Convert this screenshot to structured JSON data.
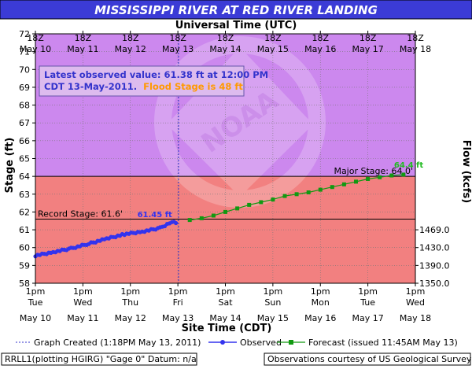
{
  "page": {
    "title": "MISSISSIPPI RIVER AT RED RIVER LANDING",
    "top_axis_title": "Universal Time (UTC)",
    "bottom_axis_title": "Site Time (CDT)",
    "left_axis_title": "Stage (ft)",
    "right_axis_title": "Flow (kcfs)",
    "station_text": "RRLL1(plotting HGIRG) \"Gage 0\" Datum: n/a",
    "credit_text": "Observations courtesy of US Geological Survey",
    "info_line1": "Latest observed value: 61.38 ft at 12:00 PM",
    "info_line2a": "CDT 13-May-2011.",
    "info_line2b": "Flood Stage is 48 ft",
    "legend": {
      "created": "Graph Created (1:18PM May 13, 2011)",
      "observed": "Observed",
      "forecast": "Forecast (issued 11:45AM May 13)"
    },
    "watermark": "NOAA"
  },
  "colors": {
    "title_bar": "#3b3bd6",
    "zone_high": "#cc88ee",
    "zone_low": "#f28080",
    "observed": "#3333ee",
    "forecast": "#119911",
    "info_text": "#3333cc",
    "flood_text": "#ff9900",
    "peak_label": "#22bb22",
    "obs_label": "#3333ee"
  },
  "chart_data": {
    "type": "line",
    "ylim": [
      58,
      72
    ],
    "y_ticks": [
      "58",
      "59",
      "60",
      "61",
      "62",
      "63",
      "64",
      "65",
      "66",
      "67",
      "68",
      "69",
      "70",
      "71",
      "72"
    ],
    "xlim": [
      "2011-05-10T13:00",
      "2011-05-18T13:00"
    ],
    "top_ticks": [
      {
        "hour": "18Z",
        "date": "May 10"
      },
      {
        "hour": "18Z",
        "date": "May 11"
      },
      {
        "hour": "18Z",
        "date": "May 12"
      },
      {
        "hour": "18Z",
        "date": "May 13"
      },
      {
        "hour": "18Z",
        "date": "May 14"
      },
      {
        "hour": "18Z",
        "date": "May 15"
      },
      {
        "hour": "18Z",
        "date": "May 16"
      },
      {
        "hour": "18Z",
        "date": "May 17"
      },
      {
        "hour": "18Z",
        "date": "May 18"
      }
    ],
    "bottom_ticks": [
      {
        "time": "1pm",
        "day": "Tue",
        "date": "May 10"
      },
      {
        "time": "1pm",
        "day": "Wed",
        "date": "May 11"
      },
      {
        "time": "1pm",
        "day": "Thu",
        "date": "May 12"
      },
      {
        "time": "1pm",
        "day": "Fri",
        "date": "May 13"
      },
      {
        "time": "1pm",
        "day": "Sat",
        "date": "May 14"
      },
      {
        "time": "1pm",
        "day": "Sun",
        "date": "May 15"
      },
      {
        "time": "1pm",
        "day": "Mon",
        "date": "May 16"
      },
      {
        "time": "1pm",
        "day": "Tue",
        "date": "May 17"
      },
      {
        "time": "1pm",
        "day": "Wed",
        "date": "May 18"
      }
    ],
    "flow_ticks": [
      {
        "stage": 61.0,
        "label": "1469.0"
      },
      {
        "stage": 60.0,
        "label": "1430.0"
      },
      {
        "stage": 59.0,
        "label": "1390.0"
      },
      {
        "stage": 58.0,
        "label": "1350.0"
      }
    ],
    "reference_lines": [
      {
        "name": "Record Stage",
        "label": "Record Stage: 61.6'",
        "value": 61.6
      },
      {
        "name": "Major Stage",
        "label": "Major Stage: 64.0'",
        "value": 64.0
      }
    ],
    "zone_boundary_stage": 64.0,
    "graph_created": "2011-05-13T13:18",
    "series": [
      {
        "name": "Observed",
        "peak_label": "61.45 ft",
        "points": [
          [
            "2011-05-10T13:00",
            59.55
          ],
          [
            "2011-05-10T22:00",
            59.75
          ],
          [
            "2011-05-11T07:00",
            59.95
          ],
          [
            "2011-05-11T16:00",
            60.22
          ],
          [
            "2011-05-12T01:00",
            60.5
          ],
          [
            "2011-05-12T10:00",
            60.75
          ],
          [
            "2011-05-12T19:00",
            60.9
          ],
          [
            "2011-05-13T04:00",
            61.1
          ],
          [
            "2011-05-13T10:00",
            61.45
          ],
          [
            "2011-05-13T12:00",
            61.38
          ]
        ]
      },
      {
        "name": "Forecast",
        "peak_label": "64.4 ft",
        "points": [
          [
            "2011-05-13T19:00",
            61.55
          ],
          [
            "2011-05-14T01:00",
            61.65
          ],
          [
            "2011-05-14T07:00",
            61.8
          ],
          [
            "2011-05-14T13:00",
            62.0
          ],
          [
            "2011-05-14T19:00",
            62.2
          ],
          [
            "2011-05-15T01:00",
            62.4
          ],
          [
            "2011-05-15T07:00",
            62.55
          ],
          [
            "2011-05-15T13:00",
            62.7
          ],
          [
            "2011-05-15T19:00",
            62.9
          ],
          [
            "2011-05-16T01:00",
            63.0
          ],
          [
            "2011-05-16T07:00",
            63.1
          ],
          [
            "2011-05-16T13:00",
            63.25
          ],
          [
            "2011-05-16T19:00",
            63.4
          ],
          [
            "2011-05-17T01:00",
            63.55
          ],
          [
            "2011-05-17T07:00",
            63.7
          ],
          [
            "2011-05-17T13:00",
            63.85
          ],
          [
            "2011-05-17T19:00",
            63.95
          ],
          [
            "2011-05-18T01:00",
            64.05
          ],
          [
            "2011-05-18T07:00",
            64.1
          ]
        ]
      }
    ]
  }
}
